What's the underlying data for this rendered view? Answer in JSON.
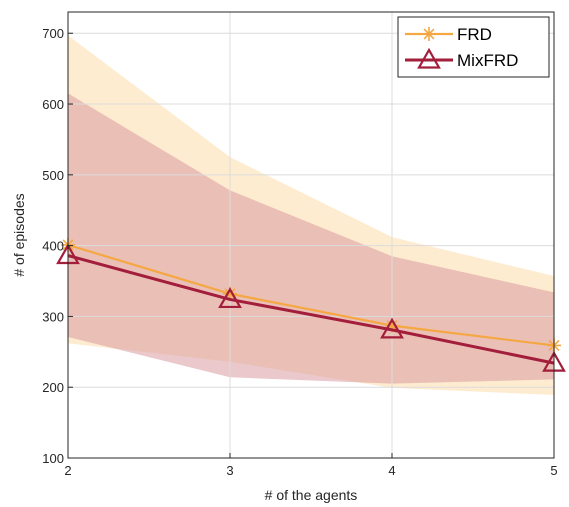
{
  "chart_data": {
    "type": "line",
    "title": "",
    "xlabel": "# of the agents",
    "ylabel": "# of episodes",
    "x": [
      2,
      3,
      4,
      5
    ],
    "xlim": [
      2,
      5
    ],
    "ylim": [
      100,
      730
    ],
    "xticks": [
      2,
      3,
      4,
      5
    ],
    "yticks": [
      100,
      200,
      300,
      400,
      500,
      600,
      700
    ],
    "grid": true,
    "legend_position": "top-right",
    "series": [
      {
        "name": "FRD",
        "color": "#f5a742",
        "marker": "asterisk",
        "values": [
          401,
          332,
          287,
          259
        ],
        "band_upper": [
          697,
          525,
          412,
          357
        ],
        "band_lower": [
          262,
          236,
          199,
          189
        ],
        "band_color": "#fde5c0"
      },
      {
        "name": "MixFRD",
        "color": "#a21e3b",
        "marker": "triangle",
        "values": [
          386,
          324,
          281,
          234
        ],
        "band_upper": [
          615,
          478,
          385,
          334
        ],
        "band_lower": [
          271,
          214,
          205,
          211
        ],
        "band_color": "#d99aa0"
      }
    ]
  }
}
